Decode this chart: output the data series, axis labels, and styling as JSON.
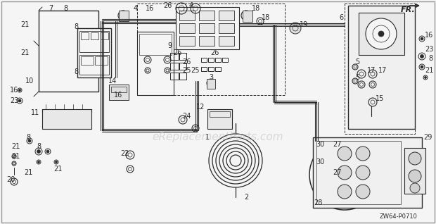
{
  "bg_color": "#f5f5f5",
  "diagram_color": "#2a2a2a",
  "watermark_text": "eReplacementParts.com",
  "watermark_color": "#bbbbbb",
  "watermark_alpha": 0.5,
  "watermark_fontsize": 11,
  "ref_code": "ZW64-P0710",
  "fig_width": 6.2,
  "fig_height": 3.18,
  "dpi": 100
}
